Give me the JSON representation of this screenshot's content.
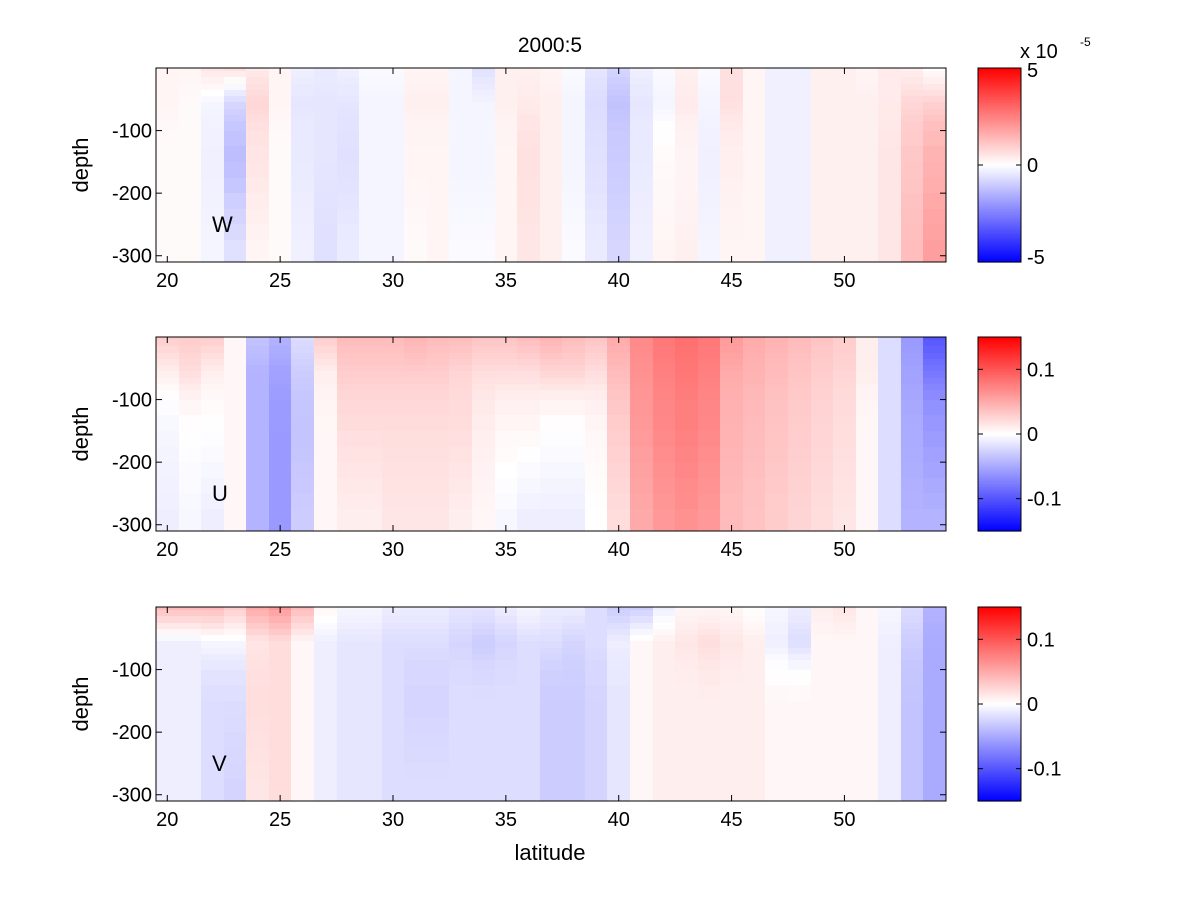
{
  "chart_data": {
    "type": "heatmap",
    "title": "2000:5",
    "xlabel": "latitude",
    "ylabel": "depth",
    "x_ticks": [
      20,
      25,
      30,
      35,
      40,
      45,
      50
    ],
    "y_ticks": [
      -100,
      -200,
      -300
    ],
    "xlim": [
      19.5,
      54.5
    ],
    "ylim": [
      -310,
      0
    ],
    "lat_edges": [
      19.5,
      20.5,
      21.5,
      22.5,
      23.5,
      24.5,
      25.5,
      26.5,
      27.5,
      28.5,
      29.5,
      30.5,
      31.5,
      32.5,
      33.5,
      34.5,
      35.5,
      36.5,
      37.5,
      38.5,
      39.5,
      40.5,
      41.5,
      42.5,
      43.5,
      44.5,
      45.5,
      46.5,
      47.5,
      48.5,
      49.5,
      50.5,
      51.5,
      52.5,
      53.5,
      54.5
    ],
    "depth_edges": [
      0,
      -5,
      -15,
      -25,
      -35,
      -45,
      -55,
      -65,
      -75,
      -85,
      -100,
      -125,
      -150,
      -175,
      -200,
      -225,
      -250,
      -275,
      -310
    ],
    "panels": [
      {
        "name": "W",
        "label": "W",
        "clim": [
          -5,
          5
        ],
        "colorbar_ticks": [
          "5",
          "0",
          "-5"
        ],
        "colorbar_tick_values": [
          5,
          0,
          -5
        ],
        "colorbar_exponent_base": "x 10",
        "colorbar_exponent_power": "-5",
        "cols": [
          [
            0.2,
            0.2,
            0.1,
            0.1
          ],
          [
            0.2,
            0.1,
            0.1,
            0.1
          ],
          [
            0.5,
            -0.2,
            -0.3,
            -0.2
          ],
          [
            0.6,
            -0.8,
            -1.3,
            -0.6
          ],
          [
            0.4,
            0.8,
            0.5,
            0.2
          ],
          [
            0.2,
            0.2,
            0.1,
            0.1
          ],
          [
            -0.3,
            -0.5,
            -0.4,
            -0.3
          ],
          [
            -0.4,
            -0.5,
            -0.5,
            -0.6
          ],
          [
            -0.3,
            -0.5,
            -0.6,
            -0.4
          ],
          [
            -0.1,
            -0.2,
            -0.2,
            -0.2
          ],
          [
            -0.1,
            -0.2,
            -0.2,
            -0.2
          ],
          [
            0.2,
            0.3,
            0.2,
            0.1
          ],
          [
            0.2,
            0.3,
            0.2,
            0.2
          ],
          [
            -0.2,
            -0.2,
            -0.2,
            -0.1
          ],
          [
            -0.6,
            -0.2,
            -0.2,
            -0.1
          ],
          [
            0.3,
            0.3,
            0.2,
            0.2
          ],
          [
            0.3,
            0.4,
            0.6,
            0.5
          ],
          [
            0.2,
            0.3,
            0.3,
            0.3
          ],
          [
            -0.1,
            -0.2,
            -0.2,
            -0.1
          ],
          [
            -0.5,
            -0.7,
            -0.6,
            -0.4
          ],
          [
            -0.8,
            -1.2,
            -1.0,
            -0.8
          ],
          [
            -0.3,
            -0.5,
            -0.4,
            -0.3
          ],
          [
            -0.1,
            -0.2,
            0.1,
            0.2
          ],
          [
            0.3,
            0.4,
            0.2,
            0.3
          ],
          [
            -0.1,
            -0.2,
            -0.3,
            -0.2
          ],
          [
            0.6,
            0.6,
            0.3,
            0.2
          ],
          [
            0.2,
            0.2,
            0.2,
            0.2
          ],
          [
            -0.3,
            -0.3,
            -0.3,
            -0.3
          ],
          [
            -0.3,
            -0.3,
            -0.3,
            -0.3
          ],
          [
            0.3,
            0.3,
            0.3,
            0.3
          ],
          [
            0.3,
            0.3,
            0.3,
            0.3
          ],
          [
            0.2,
            0.3,
            0.3,
            0.3
          ],
          [
            0.4,
            0.4,
            0.5,
            0.5
          ],
          [
            0.3,
            0.8,
            1.1,
            1.3
          ],
          [
            0.0,
            0.9,
            1.5,
            1.9
          ]
        ]
      },
      {
        "name": "U",
        "label": "U",
        "clim": [
          -0.15,
          0.15
        ],
        "colorbar_ticks": [
          "0.1",
          "0",
          "-0.1"
        ],
        "colorbar_tick_values": [
          0.1,
          0,
          -0.1
        ],
        "cols": [
          [
            0.03,
            0.01,
            -0.005,
            -0.01
          ],
          [
            0.03,
            0.02,
            0.0,
            -0.005
          ],
          [
            0.03,
            0.01,
            0.0,
            -0.01
          ],
          [
            0.005,
            0.005,
            0.005,
            0.005
          ],
          [
            -0.035,
            -0.045,
            -0.045,
            -0.045
          ],
          [
            -0.045,
            -0.055,
            -0.06,
            -0.06
          ],
          [
            -0.02,
            -0.03,
            -0.035,
            -0.03
          ],
          [
            0.03,
            0.01,
            0.005,
            0.005
          ],
          [
            0.04,
            0.03,
            0.02,
            0.01
          ],
          [
            0.04,
            0.03,
            0.02,
            0.01
          ],
          [
            0.04,
            0.03,
            0.02,
            0.015
          ],
          [
            0.045,
            0.03,
            0.02,
            0.015
          ],
          [
            0.04,
            0.03,
            0.02,
            0.015
          ],
          [
            0.04,
            0.025,
            0.02,
            0.01
          ],
          [
            0.035,
            0.02,
            0.01,
            0.005
          ],
          [
            0.035,
            0.02,
            0.005,
            -0.005
          ],
          [
            0.04,
            0.02,
            0.005,
            -0.01
          ],
          [
            0.045,
            0.025,
            0.0,
            -0.01
          ],
          [
            0.04,
            0.025,
            0.0,
            -0.01
          ],
          [
            0.035,
            0.02,
            0.005,
            0.0
          ],
          [
            0.05,
            0.04,
            0.03,
            0.02
          ],
          [
            0.07,
            0.065,
            0.06,
            0.05
          ],
          [
            0.08,
            0.075,
            0.07,
            0.06
          ],
          [
            0.085,
            0.08,
            0.075,
            0.065
          ],
          [
            0.08,
            0.075,
            0.07,
            0.06
          ],
          [
            0.06,
            0.05,
            0.045,
            0.04
          ],
          [
            0.05,
            0.045,
            0.04,
            0.035
          ],
          [
            0.045,
            0.04,
            0.035,
            0.03
          ],
          [
            0.04,
            0.035,
            0.03,
            0.025
          ],
          [
            0.035,
            0.03,
            0.025,
            0.02
          ],
          [
            0.03,
            0.025,
            0.02,
            0.015
          ],
          [
            0.01,
            0.01,
            0.005,
            0.005
          ],
          [
            -0.02,
            -0.02,
            -0.02,
            -0.02
          ],
          [
            -0.06,
            -0.055,
            -0.05,
            -0.045
          ],
          [
            -0.1,
            -0.08,
            -0.06,
            -0.045
          ]
        ]
      },
      {
        "name": "V",
        "label": "V",
        "clim": [
          -0.15,
          0.15
        ],
        "colorbar_ticks": [
          "0.1",
          "0",
          "-0.1"
        ],
        "colorbar_tick_values": [
          0.1,
          0,
          -0.1
        ],
        "cols": [
          [
            0.04,
            -0.01,
            -0.01,
            -0.01
          ],
          [
            0.04,
            -0.01,
            -0.01,
            -0.01
          ],
          [
            0.04,
            -0.005,
            -0.02,
            -0.02
          ],
          [
            0.03,
            -0.005,
            -0.02,
            -0.025
          ],
          [
            0.05,
            0.015,
            0.02,
            0.015
          ],
          [
            0.06,
            0.02,
            0.02,
            0.02
          ],
          [
            0.04,
            0.005,
            0.005,
            0.005
          ],
          [
            0.005,
            -0.01,
            -0.01,
            -0.01
          ],
          [
            -0.005,
            -0.015,
            -0.015,
            -0.015
          ],
          [
            -0.005,
            -0.015,
            -0.015,
            -0.015
          ],
          [
            -0.01,
            -0.02,
            -0.02,
            -0.02
          ],
          [
            -0.01,
            -0.02,
            -0.025,
            -0.02
          ],
          [
            -0.01,
            -0.02,
            -0.025,
            -0.02
          ],
          [
            -0.015,
            -0.025,
            -0.02,
            -0.02
          ],
          [
            -0.015,
            -0.03,
            -0.02,
            -0.02
          ],
          [
            -0.01,
            -0.025,
            -0.02,
            -0.02
          ],
          [
            -0.005,
            -0.02,
            -0.02,
            -0.02
          ],
          [
            -0.01,
            -0.02,
            -0.03,
            -0.03
          ],
          [
            -0.01,
            -0.025,
            -0.03,
            -0.03
          ],
          [
            -0.02,
            -0.02,
            -0.025,
            -0.025
          ],
          [
            -0.03,
            -0.01,
            -0.015,
            -0.015
          ],
          [
            -0.03,
            0.005,
            0.005,
            0.005
          ],
          [
            -0.01,
            0.01,
            0.01,
            0.01
          ],
          [
            0.005,
            0.015,
            0.01,
            0.01
          ],
          [
            0.005,
            0.02,
            0.01,
            0.01
          ],
          [
            0.005,
            0.015,
            0.01,
            0.01
          ],
          [
            0.0,
            0.01,
            0.01,
            0.01
          ],
          [
            -0.005,
            -0.01,
            0.005,
            0.005
          ],
          [
            -0.01,
            -0.02,
            0.005,
            0.005
          ],
          [
            0.01,
            0.005,
            0.005,
            0.005
          ],
          [
            0.015,
            0.005,
            0.005,
            0.005
          ],
          [
            0.005,
            0.005,
            0.005,
            0.005
          ],
          [
            -0.005,
            -0.01,
            -0.01,
            -0.01
          ],
          [
            -0.02,
            -0.03,
            -0.035,
            -0.035
          ],
          [
            -0.045,
            -0.05,
            -0.05,
            -0.05
          ]
        ]
      }
    ]
  }
}
